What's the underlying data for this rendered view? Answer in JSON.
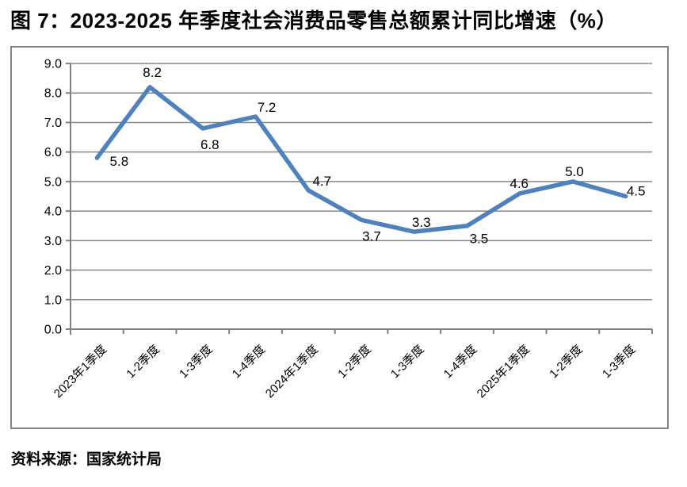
{
  "title": "图 7：2023-2025 年季度社会消费品零售总额累计同比增速（%）",
  "source": "资料来源：国家统计局",
  "colors": {
    "line": "#4f81bd",
    "grid": "#878787",
    "axis": "#808080",
    "border": "#858585",
    "text": "#000000",
    "background": "#ffffff"
  },
  "chart_data": {
    "type": "line",
    "title": "2023-2025 年季度社会消费品零售总额累计同比增速（%）",
    "categories": [
      "2023年1季度",
      "1-2季度",
      "1-3季度",
      "1-4季度",
      "2024年1季度",
      "1-2季度",
      "1-3季度",
      "1-4季度",
      "2025年1季度",
      "1-2季度",
      "1-3季度"
    ],
    "values": [
      5.8,
      8.2,
      6.8,
      7.2,
      4.7,
      3.7,
      3.3,
      3.5,
      4.6,
      5.0,
      4.5
    ],
    "data_labels": [
      "5.8",
      "8.2",
      "6.8",
      "7.2",
      "4.7",
      "3.7",
      "3.3",
      "3.5",
      "4.6",
      "5.0",
      "4.5"
    ],
    "xlabel": "",
    "ylabel": "",
    "ylim": [
      0.0,
      9.0
    ],
    "ytick_step": 1.0,
    "ytick_labels": [
      "0.0",
      "1.0",
      "2.0",
      "3.0",
      "4.0",
      "5.0",
      "6.0",
      "7.0",
      "8.0",
      "9.0"
    ],
    "grid": true,
    "legend": "none",
    "markers": false
  }
}
